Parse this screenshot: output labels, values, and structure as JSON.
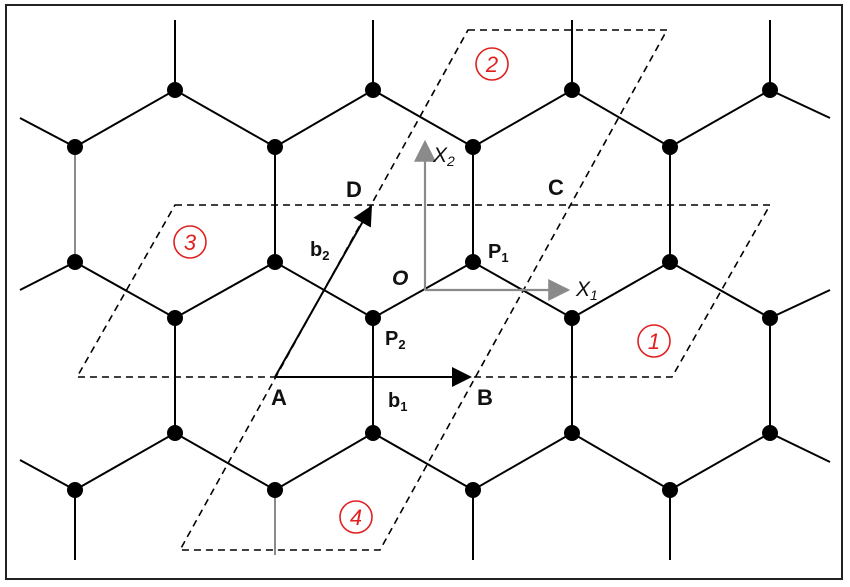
{
  "labels": {
    "A": "A",
    "B": "B",
    "C": "C",
    "D": "D",
    "O": "O",
    "b1": "b",
    "b1_sub": "1",
    "b2": "b",
    "b2_sub": "2",
    "P1": "P",
    "P1_sub": "1",
    "P2": "P",
    "P2_sub": "2",
    "x1": "X",
    "x1_sub": "1",
    "x2": "X",
    "x2_sub": "2"
  },
  "regions": {
    "r1": "1",
    "r2": "2",
    "r3": "3",
    "r4": "4"
  },
  "colors": {
    "lattice": "#000000",
    "axis": "#8a8a8a",
    "region": "#e02020",
    "dash": "#000000"
  }
}
